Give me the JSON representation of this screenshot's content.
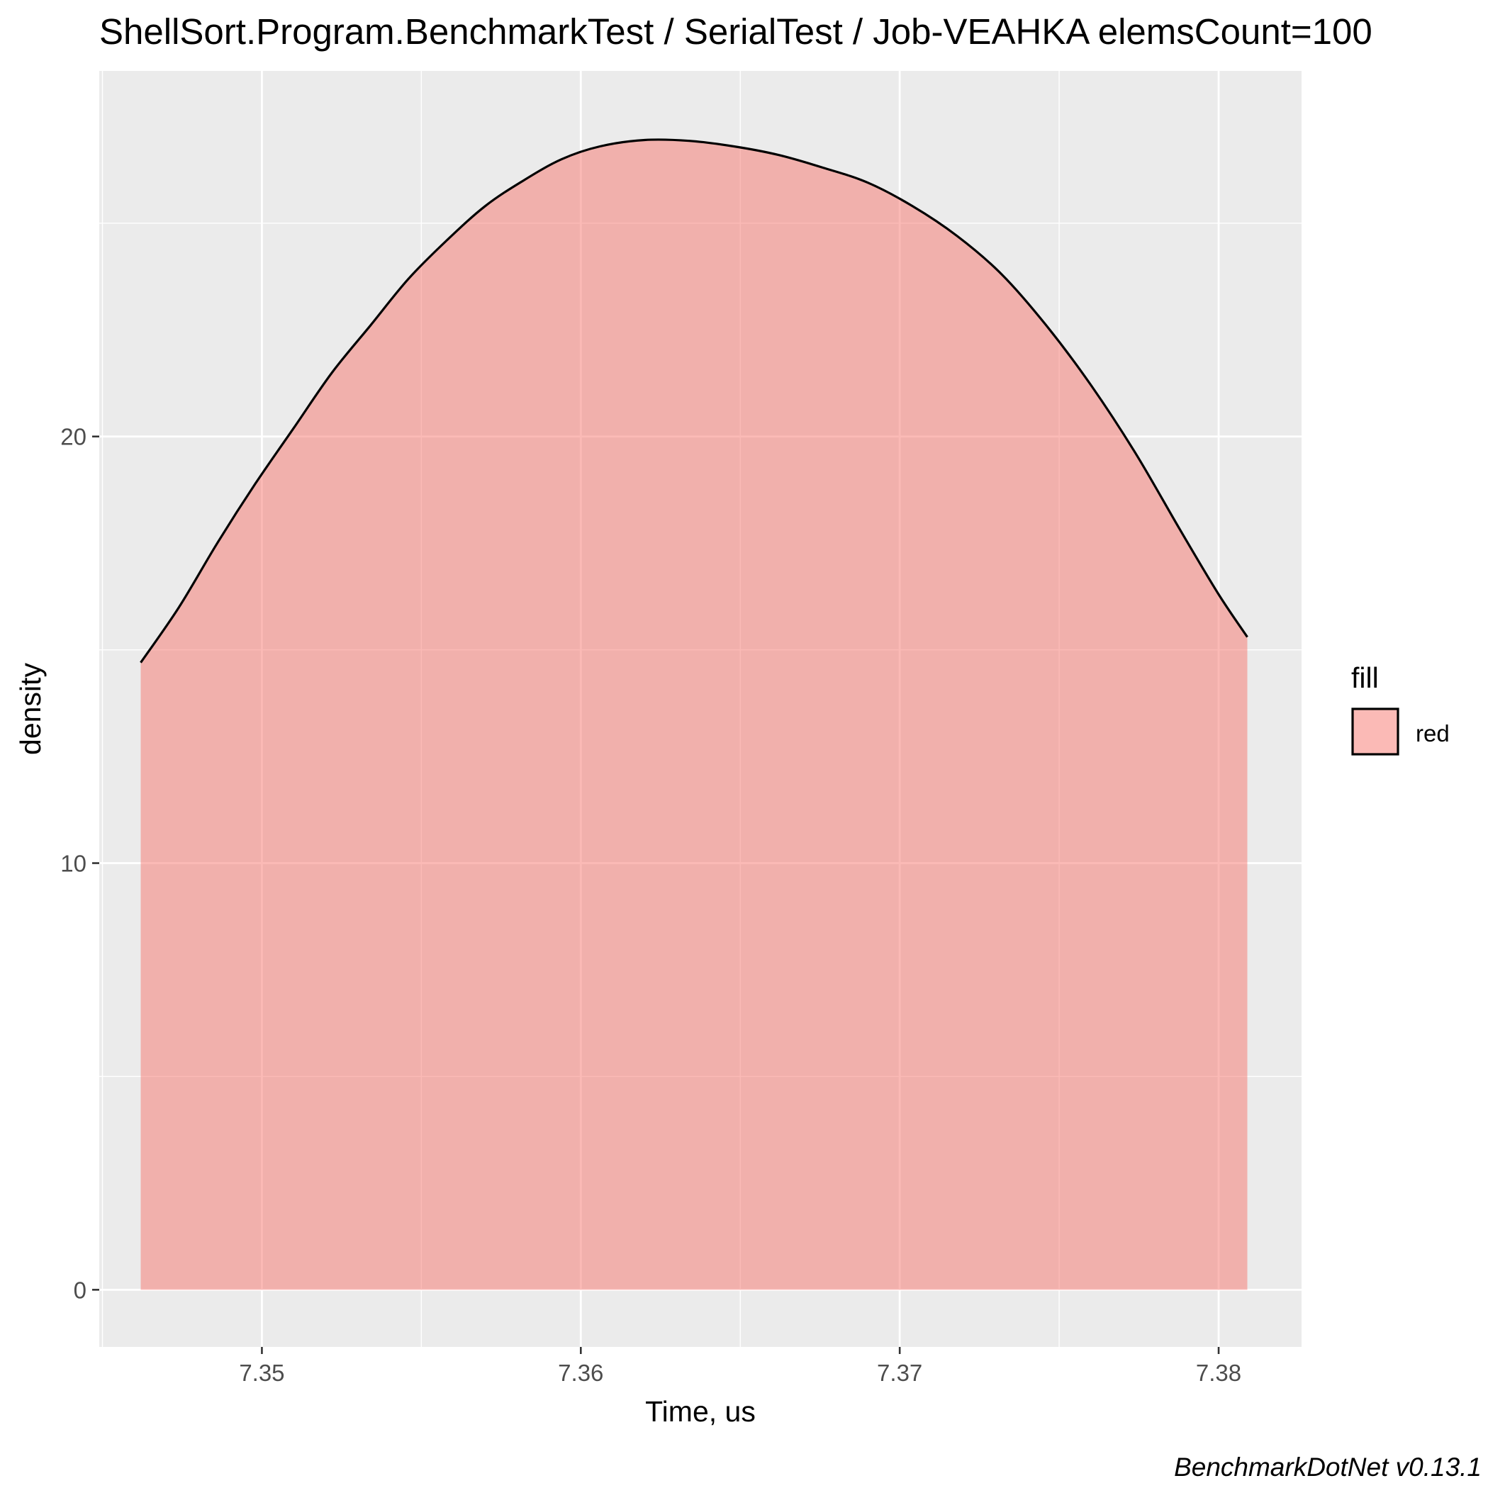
{
  "chart_data": {
    "type": "area",
    "title": "ShellSort.Program.BenchmarkTest / SerialTest / Job-VEAHKA elemsCount=100",
    "xlabel": "Time, us",
    "ylabel": "density",
    "caption": "BenchmarkDotNet v0.13.1",
    "xlim": [
      7.3449,
      7.3826
    ],
    "ylim": [
      -1.34,
      28.57
    ],
    "x_ticks": [
      7.35,
      7.36,
      7.37,
      7.38
    ],
    "x_tick_labels": [
      "7.35",
      "7.36",
      "7.37",
      "7.38"
    ],
    "y_ticks": [
      0,
      10,
      20
    ],
    "y_tick_labels": [
      "0",
      "10",
      "20"
    ],
    "grid": true,
    "legend": {
      "title": "fill",
      "position": "right",
      "entries": [
        {
          "label": "red",
          "color": "#F8766D"
        }
      ]
    },
    "series": [
      {
        "name": "red",
        "fill": "#F8766D",
        "fill_opacity": 0.5,
        "x": [
          7.3462,
          7.3474,
          7.3486,
          7.3498,
          7.351,
          7.3522,
          7.3534,
          7.3546,
          7.3558,
          7.357,
          7.3582,
          7.3594,
          7.3606,
          7.362,
          7.3634,
          7.3648,
          7.3662,
          7.3676,
          7.369,
          7.3704,
          7.3718,
          7.3732,
          7.3746,
          7.376,
          7.3774,
          7.3788,
          7.38,
          7.3809
        ],
        "y": [
          14.7,
          16.0,
          17.5,
          18.9,
          20.2,
          21.5,
          22.6,
          23.7,
          24.6,
          25.4,
          26.0,
          26.5,
          26.8,
          26.95,
          26.93,
          26.8,
          26.6,
          26.3,
          25.95,
          25.4,
          24.7,
          23.8,
          22.6,
          21.2,
          19.6,
          17.8,
          16.3,
          15.3
        ]
      }
    ]
  }
}
